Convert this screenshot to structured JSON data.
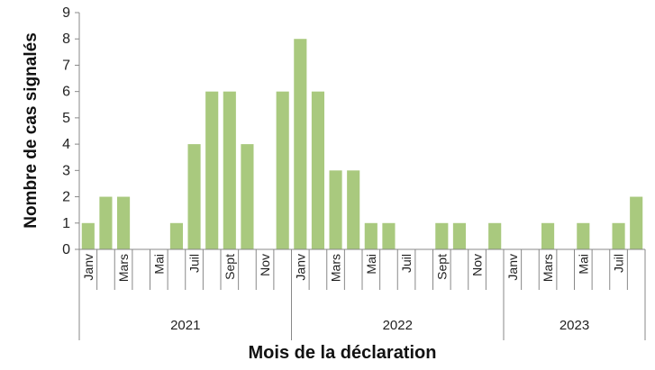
{
  "chart_data": {
    "type": "bar",
    "xlabel": "Mois de la déclaration",
    "ylabel": "Nombre de cas signalés",
    "ylim": [
      0,
      9
    ],
    "yticks": [
      0,
      1,
      2,
      3,
      4,
      5,
      6,
      7,
      8,
      9
    ],
    "bar_color": "#A9C97E",
    "axis_color": "#888888",
    "grid": false,
    "legend": "none",
    "years": [
      {
        "label": "2021",
        "months": 12
      },
      {
        "label": "2022",
        "months": 12
      },
      {
        "label": "2023",
        "months": 8
      }
    ],
    "categories": [
      "Janv",
      "",
      "Mars",
      "",
      "Mai",
      "",
      "Juil",
      "",
      "Sept",
      "",
      "Nov",
      "",
      "Janv",
      "",
      "Mars",
      "",
      "Mai",
      "",
      "Juil",
      "",
      "Sept",
      "",
      "Nov",
      "",
      "Janv",
      "",
      "Mars",
      "",
      "Mai",
      "",
      "Juil",
      ""
    ],
    "values": [
      1,
      2,
      2,
      0,
      0,
      1,
      4,
      6,
      6,
      4,
      0,
      6,
      8,
      6,
      3,
      3,
      1,
      1,
      0,
      0,
      1,
      1,
      0,
      1,
      0,
      0,
      1,
      0,
      1,
      0,
      1,
      2
    ]
  }
}
